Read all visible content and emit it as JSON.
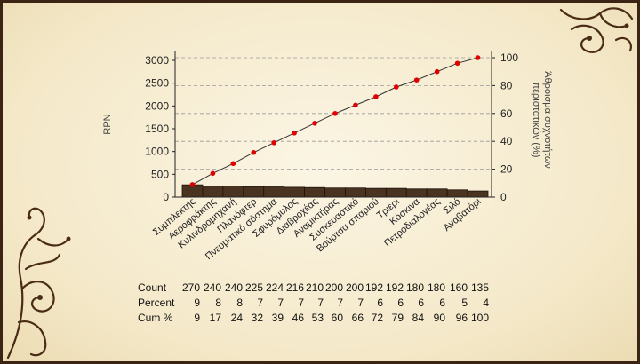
{
  "colors": {
    "bar": "#4a3320",
    "bar_edge": "#1e140c",
    "line": "#333333",
    "marker": "#e00000",
    "grid": "#9a9a9a",
    "ornament": "#4a2c16"
  },
  "chart_data": {
    "type": "bar",
    "ylabel": "RPN",
    "ylabel_right": "Άθροισμα συχνοτήτων περιστατικών (%)",
    "ylim": [
      0,
      3100
    ],
    "ylim_right": [
      0,
      100
    ],
    "yticks": [
      0,
      500,
      1000,
      1500,
      2000,
      2500,
      3000
    ],
    "yticks_right": [
      0,
      20,
      40,
      60,
      80,
      100
    ],
    "grid": true,
    "categories": [
      "Συμπλεκτης",
      "Αεροφράκτης",
      "Κυλινδρομηχανή",
      "Πλανόφτερ",
      "Πνευματικό σύστημα",
      "Σφυρόμυλος",
      "Διαβροχέας",
      "Αναμικτήρας",
      "Συσκευαστικό",
      "Βούρτσα σπαριού",
      "Τριέρι",
      "Κόσκινα",
      "Πετροδιαλογέας",
      "Σιλό",
      "Αναβατόρι"
    ],
    "series": [
      {
        "values": [
          270,
          240,
          240,
          225,
          224,
          216,
          210,
          200,
          200,
          192,
          192,
          180,
          180,
          160,
          135
        ]
      },
      {
        "values": [
          9,
          17,
          24,
          32,
          39,
          46,
          53,
          60,
          66,
          72,
          79,
          84,
          90,
          96,
          100
        ]
      }
    ],
    "table": {
      "row_labels": [
        "Count",
        "Percent",
        "Cum %"
      ],
      "count": [
        "270",
        "240",
        "240",
        "225",
        "224",
        "216",
        "210",
        "200",
        "200",
        "192",
        "192",
        "180",
        "180",
        "160",
        "135"
      ],
      "percent": [
        "9",
        "8",
        "8",
        "7",
        "7",
        "7",
        "7",
        "7",
        "7",
        "6",
        "6",
        "6",
        "6",
        "5",
        "4"
      ],
      "cum": [
        "9",
        "17",
        "24",
        "32",
        "39",
        "46",
        "53",
        "60",
        "66",
        "72",
        "79",
        "84",
        "90",
        "96",
        "100"
      ]
    }
  }
}
